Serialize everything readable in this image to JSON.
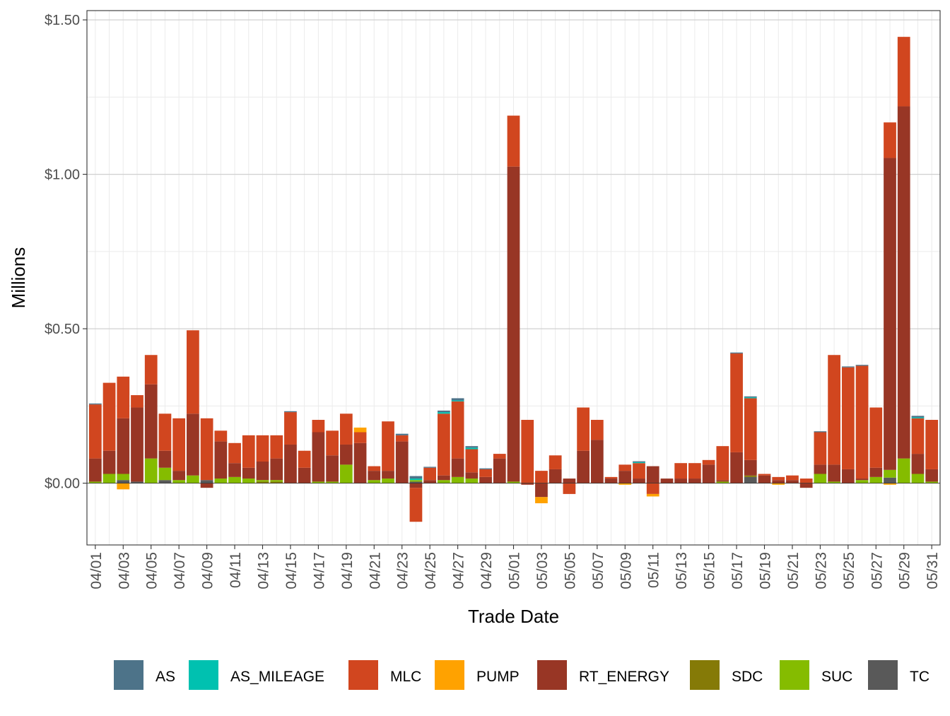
{
  "chart_data": {
    "type": "bar",
    "stacked": true,
    "xlabel": "Trade Date",
    "ylabel": "Millions",
    "ylim": [
      -0.2,
      1.53
    ],
    "yticks": [
      0,
      0.5,
      1.0,
      1.5
    ],
    "ytick_labels": [
      "$0.00",
      "$0.50",
      "$1.00",
      "$1.50"
    ],
    "xtick_labels": [
      "04/01",
      "04/03",
      "04/05",
      "04/07",
      "04/09",
      "04/11",
      "04/13",
      "04/15",
      "04/17",
      "04/19",
      "04/21",
      "04/23",
      "04/25",
      "04/27",
      "04/29",
      "05/01",
      "05/03",
      "05/05",
      "05/07",
      "05/09",
      "05/11",
      "05/13",
      "05/15",
      "05/17",
      "05/19",
      "05/21",
      "05/23",
      "05/25",
      "05/27",
      "05/29",
      "05/31"
    ],
    "categories": [
      "04/01",
      "04/02",
      "04/03",
      "04/04",
      "04/05",
      "04/06",
      "04/07",
      "04/08",
      "04/09",
      "04/10",
      "04/11",
      "04/12",
      "04/13",
      "04/14",
      "04/15",
      "04/16",
      "04/17",
      "04/18",
      "04/19",
      "04/20",
      "04/21",
      "04/22",
      "04/23",
      "04/24",
      "04/25",
      "04/26",
      "04/27",
      "04/28",
      "04/29",
      "04/30",
      "05/01",
      "05/02",
      "05/03",
      "05/04",
      "05/05",
      "05/06",
      "05/07",
      "05/08",
      "05/09",
      "05/10",
      "05/11",
      "05/12",
      "05/13",
      "05/14",
      "05/15",
      "05/16",
      "05/17",
      "05/18",
      "05/19",
      "05/20",
      "05/21",
      "05/22",
      "05/23",
      "05/24",
      "05/25",
      "05/26",
      "05/27",
      "05/28",
      "05/29",
      "05/30",
      "05/31"
    ],
    "legend_position": "bottom",
    "grid": true,
    "series": [
      {
        "name": "TC",
        "color": "#595959",
        "values": [
          0,
          0,
          0.01,
          0.005,
          0,
          0.01,
          0,
          0,
          0.01,
          0,
          0,
          0,
          0,
          0,
          0,
          0,
          0,
          0,
          0,
          0,
          0,
          0,
          0,
          0.005,
          0,
          0,
          0,
          0,
          0,
          0,
          0,
          0,
          0,
          0,
          0,
          0,
          0,
          0,
          0,
          0,
          0,
          0,
          0,
          0,
          0,
          0,
          0,
          0.02,
          0,
          0,
          0,
          0,
          0,
          0,
          0,
          0,
          0,
          0.018,
          0,
          0,
          0
        ]
      },
      {
        "name": "SDC",
        "color": "#857A07",
        "values": [
          0,
          0,
          0,
          0,
          0,
          0,
          0,
          0,
          0,
          0,
          0,
          0,
          0.005,
          0.005,
          0,
          0,
          0,
          0,
          0,
          0,
          0,
          0,
          0,
          0,
          0,
          0,
          0,
          0,
          0,
          0,
          0,
          0,
          0,
          0,
          0,
          0,
          0,
          0,
          0,
          0,
          0,
          0,
          0,
          0,
          0,
          0,
          0,
          0.005,
          0,
          0,
          0,
          0,
          0,
          0,
          0,
          0,
          0,
          0,
          0,
          0,
          0
        ]
      },
      {
        "name": "SUC",
        "color": "#85BC00",
        "values": [
          0.005,
          0.03,
          0.02,
          0,
          0.08,
          0.04,
          0.01,
          0.025,
          0,
          0.015,
          0.02,
          0.015,
          0.005,
          0.005,
          0,
          0,
          0.005,
          0.005,
          0.06,
          0,
          0.01,
          0.015,
          0,
          0.005,
          0,
          0.01,
          0.02,
          0.015,
          0,
          0,
          0.005,
          0,
          0,
          0,
          0,
          0,
          0,
          0,
          0,
          0,
          0,
          0,
          0,
          0,
          0,
          0.005,
          0,
          0,
          0,
          0,
          0,
          0,
          0.03,
          0.005,
          0,
          0.01,
          0.02,
          0.025,
          0.08,
          0.03,
          0.005
        ]
      },
      {
        "name": "RT_ENERGY",
        "color": "#983625",
        "values": [
          0.075,
          0.075,
          0.18,
          0.24,
          0.24,
          0.055,
          0.03,
          0.2,
          -0.015,
          0.12,
          0.045,
          0.035,
          0.06,
          0.07,
          0.125,
          0.05,
          0.16,
          0.085,
          0.065,
          0.13,
          0.03,
          0.025,
          0.135,
          -0.015,
          0.01,
          0.015,
          0.06,
          0.02,
          0.02,
          0.08,
          1.02,
          -0.005,
          -0.045,
          0.045,
          0.015,
          0.105,
          0.14,
          0.015,
          0.04,
          0.015,
          0.055,
          0.015,
          0.015,
          0.015,
          0.06,
          0.005,
          0.1,
          0.05,
          0.025,
          0.01,
          0.01,
          -0.015,
          0.03,
          0.055,
          0.045,
          0.005,
          0.03,
          1.01,
          1.14,
          0.065,
          0.04
        ]
      },
      {
        "name": "MLC",
        "color": "#D1461F",
        "values": [
          0.175,
          0.22,
          0.135,
          0.04,
          0.095,
          0.12,
          0.17,
          0.27,
          0.2,
          0.035,
          0.065,
          0.105,
          0.085,
          0.075,
          0.105,
          0.055,
          0.04,
          0.08,
          0.1,
          0.035,
          0.015,
          0.16,
          0.02,
          -0.11,
          0.04,
          0.2,
          0.185,
          0.075,
          0.025,
          0.015,
          0.165,
          0.205,
          0.04,
          0.045,
          -0.035,
          0.14,
          0.065,
          0.005,
          0.02,
          0.05,
          -0.035,
          0.0,
          0.05,
          0.05,
          0.015,
          0.11,
          0.32,
          0.2,
          0.005,
          0.01,
          0.015,
          0.015,
          0.105,
          0.355,
          0.33,
          0.365,
          0.195,
          0.115,
          0.225,
          0.115,
          0.16
        ]
      },
      {
        "name": "PUMP",
        "color": "#FFA200",
        "values": [
          0,
          0,
          -0.02,
          0,
          0,
          0,
          0,
          0,
          0,
          0,
          0,
          0,
          0,
          0,
          0,
          0,
          0,
          0,
          0,
          0.015,
          0,
          0,
          0,
          0,
          0,
          0,
          0,
          0,
          0,
          0,
          0,
          0,
          -0.02,
          0,
          0,
          0,
          0,
          0,
          -0.005,
          0,
          -0.008,
          0,
          0,
          0,
          0,
          0,
          0,
          0,
          0,
          -0.005,
          0,
          0,
          0,
          0,
          0,
          0,
          0,
          -0.005,
          0,
          0,
          0
        ]
      },
      {
        "name": "AS_MILEAGE",
        "color": "#00C1B0",
        "values": [
          0,
          0,
          0,
          0,
          0,
          0,
          0,
          0,
          0,
          0,
          0,
          0,
          0,
          0,
          0,
          0,
          0,
          0,
          0,
          0,
          0,
          0,
          0,
          0.005,
          0,
          0.005,
          0.003,
          0.005,
          0,
          0,
          0,
          0,
          0,
          0,
          0,
          0,
          0,
          0,
          0,
          0.003,
          0,
          0,
          0,
          0,
          0,
          0,
          0,
          0.003,
          0,
          0,
          0,
          0,
          0,
          0,
          0,
          0,
          0,
          0,
          0,
          0.003,
          0
        ]
      },
      {
        "name": "AS",
        "color": "#4D7389",
        "values": [
          0.003,
          0,
          0,
          0,
          0,
          0,
          0,
          0,
          0,
          0,
          0,
          0,
          0,
          0,
          0.003,
          0,
          0,
          0,
          0,
          0,
          0,
          0,
          0.005,
          0.008,
          0.003,
          0.005,
          0.007,
          0.005,
          0.003,
          0,
          0,
          0,
          0,
          0,
          0,
          0,
          0,
          0,
          0,
          0.003,
          0,
          0,
          0,
          0,
          0,
          0,
          0.003,
          0.003,
          0,
          0,
          0,
          0,
          0.003,
          0,
          0.003,
          0.003,
          0,
          0,
          0,
          0.005,
          0
        ]
      }
    ],
    "legend_order": [
      "AS",
      "AS_MILEAGE",
      "MLC",
      "PUMP",
      "RT_ENERGY",
      "SDC",
      "SUC",
      "TC"
    ]
  }
}
